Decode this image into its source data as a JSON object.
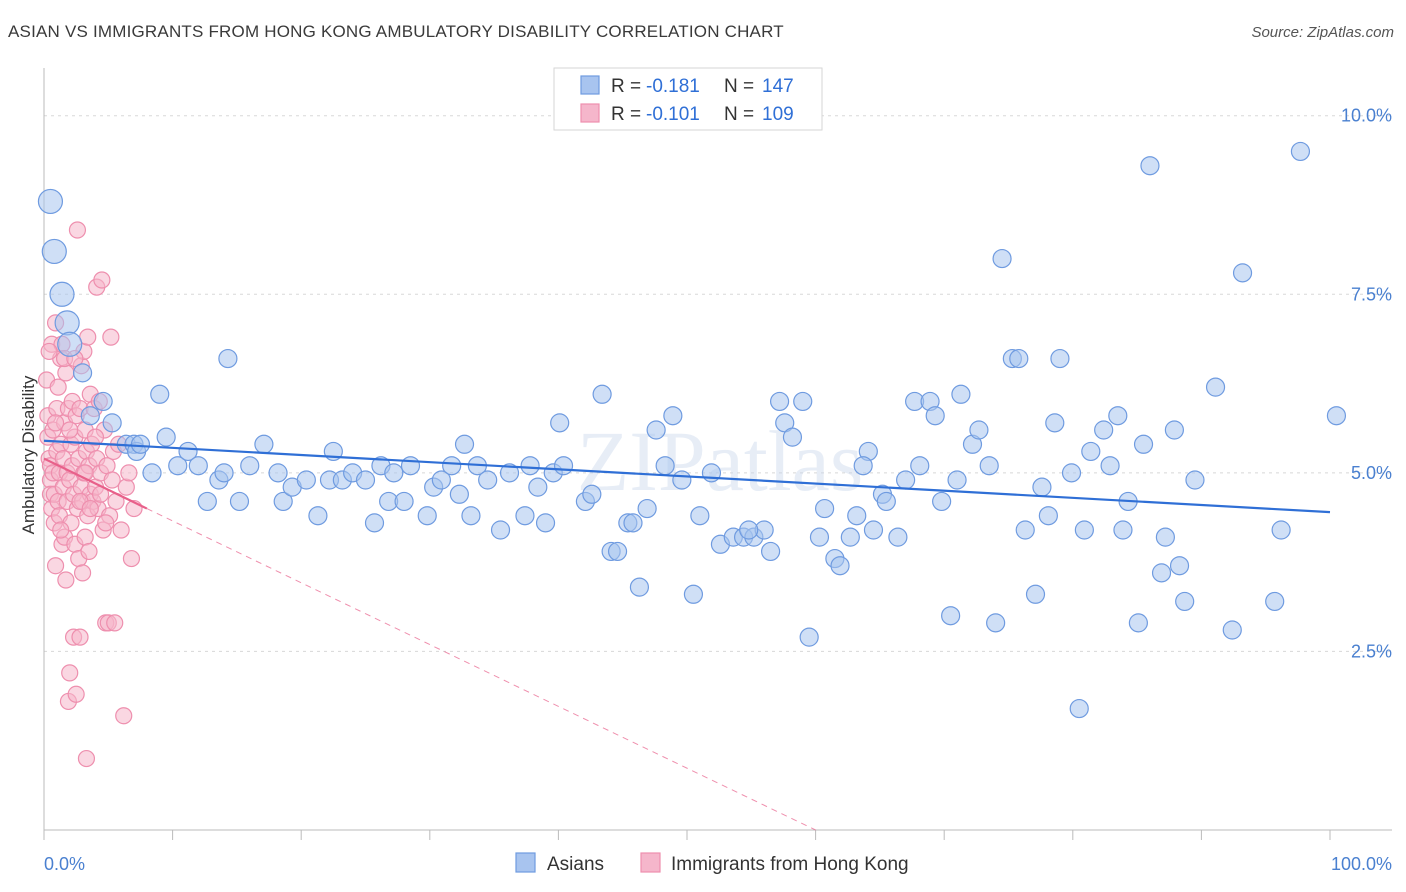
{
  "title": "ASIAN VS IMMIGRANTS FROM HONG KONG AMBULATORY DISABILITY CORRELATION CHART",
  "source": "Source: ZipAtlas.com",
  "watermark": "ZIPatlas",
  "legend": {
    "rows": [
      {
        "r_label": "R =",
        "r_value": "-0.181",
        "n_label": "N =",
        "n_value": "147",
        "color": "#a8c4ef"
      },
      {
        "r_label": "R =",
        "r_value": "-0.101",
        "n_label": "N =",
        "n_value": "109",
        "color": "#f5b6cb"
      }
    ]
  },
  "colors": {
    "blue_fill": "#a8c4ef",
    "blue_stroke": "#6f9be0",
    "blue_line": "#2f6fd6",
    "pink_fill": "#f5b6cb",
    "pink_stroke": "#ee8fae",
    "pink_line": "#e8608a",
    "grid": "#d8d8d8",
    "tick_text": "#4a80d0"
  },
  "chart_data": {
    "type": "scatter",
    "title": "ASIAN VS IMMIGRANTS FROM HONG KONG AMBULATORY DISABILITY CORRELATION CHART",
    "xlabel": "",
    "ylabel": "Ambulatory Disability",
    "xlim": [
      0,
      100
    ],
    "ylim": [
      0,
      10.5
    ],
    "x_tick_labels": [
      "0.0%",
      "100.0%"
    ],
    "y_ticks": [
      2.5,
      5.0,
      7.5,
      10.0
    ],
    "y_tick_labels": [
      "2.5%",
      "5.0%",
      "7.5%",
      "10.0%"
    ],
    "grid": "horizontal dashed",
    "legend_position": "top-center",
    "series": [
      {
        "name": "Asians",
        "trend": {
          "x": [
            0,
            100
          ],
          "y": [
            5.45,
            4.45
          ]
        },
        "points": [
          [
            0.5,
            8.8
          ],
          [
            0.8,
            8.1
          ],
          [
            1.4,
            7.5
          ],
          [
            1.8,
            7.1
          ],
          [
            2.0,
            6.8
          ],
          [
            3.0,
            6.4
          ],
          [
            4.6,
            6.0
          ],
          [
            3.6,
            5.8
          ],
          [
            5.3,
            5.7
          ],
          [
            6.4,
            5.4
          ],
          [
            7.0,
            5.4
          ],
          [
            7.2,
            5.3
          ],
          [
            7.5,
            5.4
          ],
          [
            9.5,
            5.5
          ],
          [
            14.3,
            6.6
          ],
          [
            9.0,
            6.1
          ],
          [
            8.4,
            5.0
          ],
          [
            10.4,
            5.1
          ],
          [
            11.2,
            5.3
          ],
          [
            12.7,
            4.6
          ],
          [
            12.0,
            5.1
          ],
          [
            13.6,
            4.9
          ],
          [
            14.0,
            5.0
          ],
          [
            15.2,
            4.6
          ],
          [
            16.0,
            5.1
          ],
          [
            17.1,
            5.4
          ],
          [
            18.2,
            5.0
          ],
          [
            18.6,
            4.6
          ],
          [
            19.3,
            4.8
          ],
          [
            20.4,
            4.9
          ],
          [
            21.3,
            4.4
          ],
          [
            22.2,
            4.9
          ],
          [
            22.5,
            5.3
          ],
          [
            23.2,
            4.9
          ],
          [
            24.0,
            5.0
          ],
          [
            25.0,
            4.9
          ],
          [
            25.7,
            4.3
          ],
          [
            26.2,
            5.1
          ],
          [
            26.8,
            4.6
          ],
          [
            27.2,
            5.0
          ],
          [
            28.0,
            4.6
          ],
          [
            28.5,
            5.1
          ],
          [
            29.8,
            4.4
          ],
          [
            30.3,
            4.8
          ],
          [
            30.9,
            4.9
          ],
          [
            31.7,
            5.1
          ],
          [
            32.3,
            4.7
          ],
          [
            32.7,
            5.4
          ],
          [
            33.2,
            4.4
          ],
          [
            33.7,
            5.1
          ],
          [
            34.5,
            4.9
          ],
          [
            35.5,
            4.2
          ],
          [
            36.2,
            5.0
          ],
          [
            37.4,
            4.4
          ],
          [
            37.8,
            5.1
          ],
          [
            38.4,
            4.8
          ],
          [
            39.0,
            4.3
          ],
          [
            39.6,
            5.0
          ],
          [
            40.1,
            5.7
          ],
          [
            40.4,
            5.1
          ],
          [
            42.1,
            4.6
          ],
          [
            42.6,
            4.7
          ],
          [
            43.4,
            6.1
          ],
          [
            44.1,
            3.9
          ],
          [
            44.6,
            3.9
          ],
          [
            45.4,
            4.3
          ],
          [
            45.8,
            4.3
          ],
          [
            46.3,
            3.4
          ],
          [
            46.9,
            4.5
          ],
          [
            47.6,
            5.6
          ],
          [
            48.3,
            5.1
          ],
          [
            48.9,
            5.8
          ],
          [
            49.6,
            4.9
          ],
          [
            50.5,
            3.3
          ],
          [
            51.0,
            4.4
          ],
          [
            51.9,
            5.0
          ],
          [
            52.6,
            4.0
          ],
          [
            53.6,
            4.1
          ],
          [
            54.4,
            4.1
          ],
          [
            55.2,
            4.1
          ],
          [
            56.0,
            4.2
          ],
          [
            56.5,
            3.9
          ],
          [
            57.2,
            6.0
          ],
          [
            57.6,
            5.7
          ],
          [
            58.2,
            5.5
          ],
          [
            59.0,
            6.0
          ],
          [
            59.5,
            2.7
          ],
          [
            60.3,
            4.1
          ],
          [
            60.7,
            4.5
          ],
          [
            61.5,
            3.8
          ],
          [
            61.9,
            3.7
          ],
          [
            62.7,
            4.1
          ],
          [
            63.2,
            4.4
          ],
          [
            64.1,
            5.3
          ],
          [
            64.5,
            4.2
          ],
          [
            65.2,
            4.7
          ],
          [
            65.5,
            4.6
          ],
          [
            66.4,
            4.1
          ],
          [
            67.0,
            4.9
          ],
          [
            67.7,
            6.0
          ],
          [
            68.1,
            5.1
          ],
          [
            68.9,
            6.0
          ],
          [
            69.3,
            5.8
          ],
          [
            69.8,
            4.6
          ],
          [
            70.5,
            3.0
          ],
          [
            71.0,
            4.9
          ],
          [
            71.3,
            6.1
          ],
          [
            72.2,
            5.4
          ],
          [
            72.7,
            5.6
          ],
          [
            73.5,
            5.1
          ],
          [
            74.0,
            2.9
          ],
          [
            74.5,
            8.0
          ],
          [
            75.3,
            6.6
          ],
          [
            75.8,
            6.6
          ],
          [
            76.3,
            4.2
          ],
          [
            77.1,
            3.3
          ],
          [
            77.6,
            4.8
          ],
          [
            78.1,
            4.4
          ],
          [
            78.6,
            5.7
          ],
          [
            79.0,
            6.6
          ],
          [
            79.9,
            5.0
          ],
          [
            80.5,
            1.7
          ],
          [
            80.9,
            4.2
          ],
          [
            81.4,
            5.3
          ],
          [
            82.4,
            5.6
          ],
          [
            82.9,
            5.1
          ],
          [
            83.5,
            5.8
          ],
          [
            83.9,
            4.2
          ],
          [
            84.3,
            4.6
          ],
          [
            85.1,
            2.9
          ],
          [
            85.5,
            5.4
          ],
          [
            86.0,
            9.3
          ],
          [
            86.9,
            3.6
          ],
          [
            87.2,
            4.1
          ],
          [
            87.9,
            5.6
          ],
          [
            88.3,
            3.7
          ],
          [
            88.7,
            3.2
          ],
          [
            89.5,
            4.9
          ],
          [
            91.1,
            6.2
          ],
          [
            92.4,
            2.8
          ],
          [
            93.2,
            7.8
          ],
          [
            95.7,
            3.2
          ],
          [
            96.2,
            4.2
          ],
          [
            97.7,
            9.5
          ],
          [
            100.5,
            5.8
          ],
          [
            63.7,
            5.1
          ],
          [
            54.8,
            4.2
          ]
        ]
      },
      {
        "name": "Immigrants from Hong Kong",
        "trend": {
          "x": [
            0,
            8
          ],
          "y": [
            5.2,
            4.5
          ],
          "dashed_to": [
            60,
            0
          ]
        },
        "points": [
          [
            0.2,
            6.3
          ],
          [
            0.3,
            5.8
          ],
          [
            0.3,
            5.5
          ],
          [
            0.4,
            5.2
          ],
          [
            0.5,
            5.1
          ],
          [
            0.5,
            4.9
          ],
          [
            0.5,
            4.7
          ],
          [
            0.6,
            4.5
          ],
          [
            0.6,
            6.8
          ],
          [
            0.7,
            5.6
          ],
          [
            0.7,
            5.0
          ],
          [
            0.8,
            4.7
          ],
          [
            0.8,
            4.3
          ],
          [
            0.9,
            3.7
          ],
          [
            0.9,
            7.1
          ],
          [
            1.0,
            5.3
          ],
          [
            1.0,
            5.9
          ],
          [
            1.1,
            4.6
          ],
          [
            1.1,
            6.2
          ],
          [
            1.2,
            5.0
          ],
          [
            1.2,
            4.4
          ],
          [
            1.3,
            5.4
          ],
          [
            1.3,
            6.6
          ],
          [
            1.4,
            4.0
          ],
          [
            1.4,
            6.8
          ],
          [
            1.5,
            5.2
          ],
          [
            1.5,
            4.8
          ],
          [
            1.6,
            5.7
          ],
          [
            1.6,
            4.1
          ],
          [
            1.7,
            3.5
          ],
          [
            1.7,
            6.4
          ],
          [
            1.8,
            5.0
          ],
          [
            1.8,
            4.6
          ],
          [
            1.9,
            1.8
          ],
          [
            1.9,
            5.9
          ],
          [
            2.0,
            2.2
          ],
          [
            2.0,
            4.9
          ],
          [
            2.1,
            5.4
          ],
          [
            2.1,
            4.3
          ],
          [
            2.2,
            6.0
          ],
          [
            2.2,
            5.1
          ],
          [
            2.3,
            2.7
          ],
          [
            2.3,
            4.7
          ],
          [
            2.4,
            5.5
          ],
          [
            2.4,
            4.0
          ],
          [
            2.5,
            5.8
          ],
          [
            2.5,
            1.9
          ],
          [
            2.6,
            4.5
          ],
          [
            2.6,
            8.4
          ],
          [
            2.7,
            5.2
          ],
          [
            2.7,
            3.8
          ],
          [
            2.8,
            2.7
          ],
          [
            2.8,
            5.9
          ],
          [
            2.9,
            4.8
          ],
          [
            2.9,
            6.5
          ],
          [
            3.0,
            4.6
          ],
          [
            3.0,
            3.6
          ],
          [
            3.1,
            5.0
          ],
          [
            3.1,
            6.7
          ],
          [
            3.2,
            5.6
          ],
          [
            3.2,
            4.1
          ],
          [
            3.3,
            5.3
          ],
          [
            3.3,
            1.0
          ],
          [
            3.4,
            4.4
          ],
          [
            3.4,
            6.9
          ],
          [
            3.5,
            5.1
          ],
          [
            3.5,
            3.9
          ],
          [
            3.6,
            4.7
          ],
          [
            3.6,
            6.1
          ],
          [
            3.7,
            5.4
          ],
          [
            3.8,
            4.6
          ],
          [
            3.9,
            5.9
          ],
          [
            4.0,
            4.8
          ],
          [
            4.1,
            7.6
          ],
          [
            4.1,
            5.2
          ],
          [
            4.2,
            4.5
          ],
          [
            4.3,
            6.0
          ],
          [
            4.4,
            5.0
          ],
          [
            4.5,
            7.7
          ],
          [
            4.6,
            4.2
          ],
          [
            4.7,
            5.6
          ],
          [
            4.8,
            2.9
          ],
          [
            4.9,
            5.1
          ],
          [
            5.0,
            2.9
          ],
          [
            5.1,
            4.4
          ],
          [
            5.2,
            6.9
          ],
          [
            5.3,
            4.9
          ],
          [
            5.4,
            5.3
          ],
          [
            5.5,
            2.9
          ],
          [
            5.6,
            4.6
          ],
          [
            5.8,
            5.4
          ],
          [
            6.0,
            4.2
          ],
          [
            6.2,
            1.6
          ],
          [
            6.4,
            4.8
          ],
          [
            6.6,
            5.0
          ],
          [
            6.8,
            3.8
          ],
          [
            7.0,
            4.5
          ],
          [
            0.4,
            6.7
          ],
          [
            0.9,
            5.7
          ],
          [
            1.3,
            4.2
          ],
          [
            1.6,
            6.6
          ],
          [
            2.0,
            5.6
          ],
          [
            2.4,
            6.6
          ],
          [
            2.8,
            4.6
          ],
          [
            3.2,
            5.0
          ],
          [
            3.6,
            4.5
          ],
          [
            4.0,
            5.5
          ],
          [
            4.4,
            4.7
          ],
          [
            4.8,
            4.3
          ]
        ]
      }
    ]
  },
  "bottom_legend": [
    {
      "label": "Asians",
      "color": "#a8c4ef"
    },
    {
      "label": "Immigrants from Hong Kong",
      "color": "#f5b6cb"
    }
  ]
}
